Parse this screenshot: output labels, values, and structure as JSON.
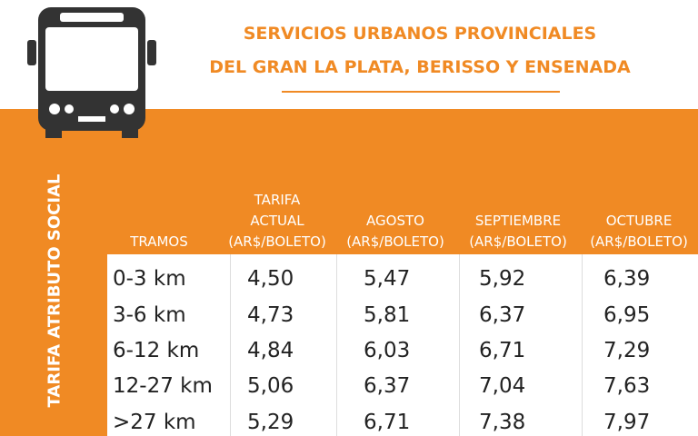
{
  "header": {
    "title": [
      "SERVICIOS URBANOS PROVINCIALES",
      "DEL GRAN LA PLATA, BERISSO Y ENSENADA"
    ]
  },
  "side_label": "TARIFA ATRIBUTO SOCIAL",
  "table": {
    "headers": [
      [
        "TRAMOS"
      ],
      [
        "TARIFA",
        "ACTUAL",
        "(AR$/BOLETO)"
      ],
      [
        "AGOSTO",
        "(AR$/BOLETO)"
      ],
      [
        "SEPTIEMBRE",
        "(AR$/BOLETO)"
      ],
      [
        "OCTUBRE",
        "(AR$/BOLETO)"
      ]
    ],
    "rows": [
      [
        "0-3 km",
        "4,50",
        "5,47",
        "5,92",
        "6,39"
      ],
      [
        "3-6 km",
        "4,73",
        "5,81",
        "6,37",
        "6,95"
      ],
      [
        "6-12 km",
        "4,84",
        "6,03",
        "6,71",
        "7,29"
      ],
      [
        "12-27 km",
        "5,06",
        "6,37",
        "7,04",
        "7,63"
      ],
      [
        ">27 km",
        "5,29",
        "6,71",
        "7,38",
        "7,97"
      ]
    ]
  }
}
